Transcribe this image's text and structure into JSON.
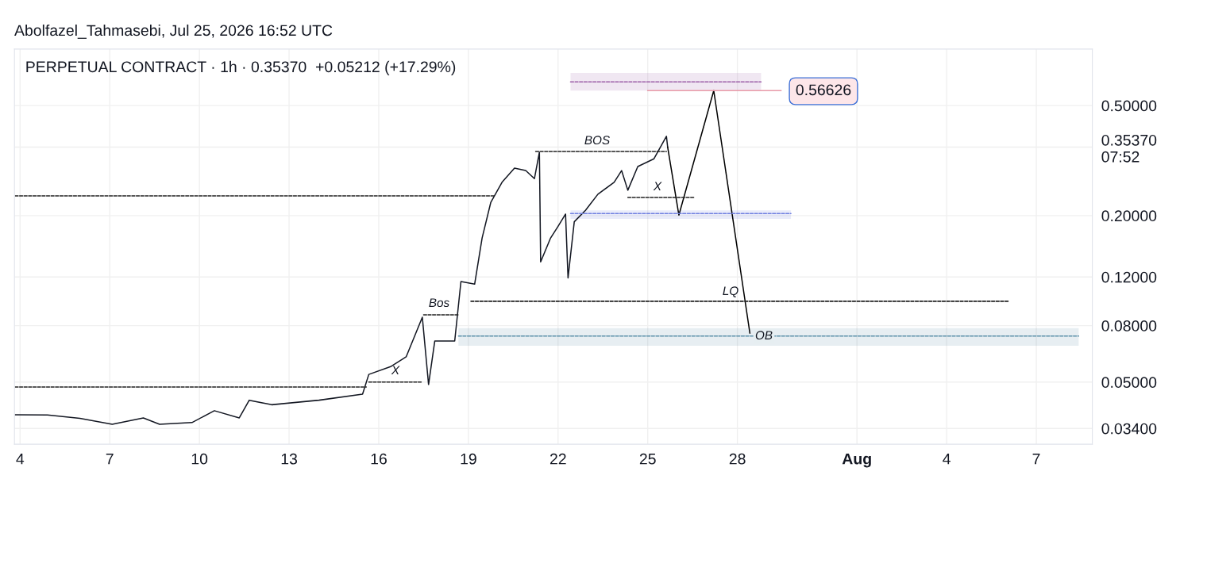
{
  "chart_data": {
    "type": "line",
    "title": "PERPETUAL CONTRACT · 1h · 0.35370  +0.05212 (+17.29%)",
    "log": true,
    "grid": true,
    "legend": false,
    "annotations": [
      "Abolfazel_Tahmasebi, Jul 25, 2026 16:52 UTC",
      "BOS",
      "X",
      "Bos",
      "X",
      "LQ",
      "OB",
      "0.56626"
    ],
    "xlim": [
      "2026-07-03T19:30",
      "2026-08-08T21:00"
    ],
    "xticks": [
      {
        "value": "2026-07-04",
        "label": "4"
      },
      {
        "value": "2026-07-07",
        "label": "7"
      },
      {
        "value": "2026-07-10",
        "label": "10"
      },
      {
        "value": "2026-07-13",
        "label": "13"
      },
      {
        "value": "2026-07-16",
        "label": "16"
      },
      {
        "value": "2026-07-19",
        "label": "19"
      },
      {
        "value": "2026-07-22",
        "label": "22"
      },
      {
        "value": "2026-07-25",
        "label": "25"
      },
      {
        "value": "2026-07-28",
        "label": "28"
      },
      {
        "value": "2026-08-01",
        "label": "Aug"
      },
      {
        "value": "2026-08-04",
        "label": "4"
      },
      {
        "value": "2026-08-07",
        "label": "7"
      }
    ],
    "ylim": [
      0.0298,
      0.8
    ],
    "yticks": [
      {
        "value": 0.034,
        "label": "0.03400"
      },
      {
        "value": 0.05,
        "label": "0.05000"
      },
      {
        "value": 0.08,
        "label": "0.08000"
      },
      {
        "value": 0.12,
        "label": "0.12000"
      },
      {
        "value": 0.2,
        "label": "0.20000"
      },
      {
        "value": 0.3537,
        "label": "0.35370\n07:52"
      },
      {
        "value": 0.5,
        "label": "0.50000"
      }
    ],
    "series": [
      {
        "color": "#131722",
        "line_style": "solid",
        "x": [
          "2026-07-03T20:00",
          "2026-07-04T22:00",
          "2026-07-06T00:00",
          "2026-07-07T02:00",
          "2026-07-08T03:00",
          "2026-07-08T16:00",
          "2026-07-09T18:00",
          "2026-07-10T12:00",
          "2026-07-11T08:00",
          "2026-07-11T16:00",
          "2026-07-12T10:00",
          "2026-07-14T00:00",
          "2026-07-15T11:00",
          "2026-07-15T16:00",
          "2026-07-16T10:00",
          "2026-07-16T22:00",
          "2026-07-17T11:00",
          "2026-07-17T16:00",
          "2026-07-17T21:00",
          "2026-07-18T13:00",
          "2026-07-18T18:00",
          "2026-07-19T05:00",
          "2026-07-19T11:00",
          "2026-07-19T18:00",
          "2026-07-20T03:00",
          "2026-07-20T13:00",
          "2026-07-20T22:00",
          "2026-07-21T05:00",
          "2026-07-21T09:00",
          "2026-07-21T10:00",
          "2026-07-21T18:00",
          "2026-07-22T00:00",
          "2026-07-22T06:00",
          "2026-07-22T08:00",
          "2026-07-22T13:00",
          "2026-07-22T22:00",
          "2026-07-23T08:00",
          "2026-07-23T21:00",
          "2026-07-24T03:00",
          "2026-07-24T08:00",
          "2026-07-24T16:00",
          "2026-07-25T05:00",
          "2026-07-25T15:00",
          "2026-07-25T16:00"
        ],
        "values": [
          0.0381,
          0.038,
          0.037,
          0.0352,
          0.0371,
          0.0352,
          0.0357,
          0.0394,
          0.0371,
          0.043,
          0.0414,
          0.043,
          0.0452,
          0.0533,
          0.057,
          0.0617,
          0.0858,
          0.049,
          0.0704,
          0.0704,
          0.1155,
          0.113,
          0.166,
          0.2235,
          0.264,
          0.297,
          0.291,
          0.272,
          0.339,
          0.136,
          0.166,
          0.183,
          0.2025,
          0.119,
          0.19,
          0.209,
          0.239,
          0.264,
          0.291,
          0.247,
          0.301,
          0.321,
          0.387,
          0.3537
        ]
      },
      {
        "color": "#000000",
        "line_style": "solid",
        "x": [
          "2026-07-25T16:00",
          "2026-07-26T01:00",
          "2026-07-27T05:00",
          "2026-07-28T10:00"
        ],
        "values": [
          0.3537,
          0.2008,
          0.56626,
          0.0752
        ]
      },
      {
        "color": "#222222",
        "line_style": "dashed",
        "x": [
          "2026-07-03T20:00",
          "2026-07-19T21:00"
        ],
        "values": [
          0.2356,
          0.2356
        ]
      },
      {
        "color": "#222222",
        "line_style": "dashed",
        "x": [
          "2026-07-03T20:00",
          "2026-07-15T14:00"
        ],
        "values": [
          0.048,
          0.048
        ]
      },
      {
        "color": "#222222",
        "line_style": "dashed",
        "x": [
          "2026-07-21T06:00",
          "2026-07-25T15:00"
        ],
        "values": [
          0.341,
          0.341
        ]
      },
      {
        "color": "#222222",
        "line_style": "dashed",
        "x": [
          "2026-07-24T08:00",
          "2026-07-26T13:00"
        ],
        "values": [
          0.2325,
          0.2325
        ]
      },
      {
        "color": "#222222",
        "line_style": "dashed",
        "x": [
          "2026-07-17T12:00",
          "2026-07-18T16:00"
        ],
        "values": [
          0.0875,
          0.0875
        ]
      },
      {
        "color": "#222222",
        "line_style": "dashed",
        "x": [
          "2026-07-15T16:00",
          "2026-07-17T11:00"
        ],
        "values": [
          0.05,
          0.05
        ]
      },
      {
        "color": "#222222",
        "line_style": "dashed",
        "x": [
          "2026-07-19T02:00",
          "2026-08-06T02:00"
        ],
        "values": [
          0.098,
          0.098
        ]
      },
      {
        "color": "#5b8fa8",
        "line_style": "dashed",
        "x": [
          "2026-07-18T16:00",
          "2026-08-08T10:00"
        ],
        "values": [
          0.0733,
          0.0733
        ],
        "lower": [
          0.0677,
          0.0677
        ],
        "upper": [
          0.0783,
          0.0783
        ]
      },
      {
        "color": "#6f7fe0",
        "line_style": "dashed",
        "x": [
          "2026-07-22T10:00",
          "2026-07-29T19:00"
        ],
        "values": [
          0.2035,
          0.2035
        ],
        "lower": [
          0.1945,
          0.1945
        ],
        "upper": [
          0.209,
          0.209
        ]
      },
      {
        "color": "#9c5fa8",
        "line_style": "dashed",
        "x": [
          "2026-07-22T10:00",
          "2026-07-28T19:00"
        ],
        "values": [
          0.609,
          0.609
        ],
        "lower": [
          0.566,
          0.566
        ],
        "upper": [
          0.656,
          0.656
        ]
      },
      {
        "color": "#e89aa8",
        "line_style": "solid",
        "x": [
          "2026-07-25T00:00",
          "2026-07-29T11:00"
        ],
        "values": [
          0.56626,
          0.56626
        ]
      }
    ]
  }
}
